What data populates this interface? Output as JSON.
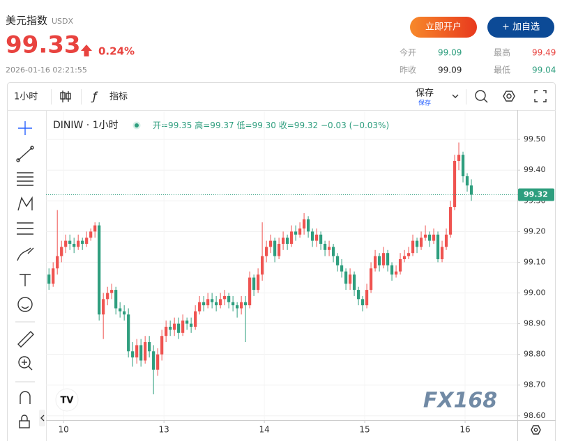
{
  "header": {
    "title": "美元指数",
    "code": "USDX",
    "price": "99.33",
    "change": "0.24%",
    "datetime": "2026-01-16 02:21:55",
    "buttons": [
      "立即开户",
      "+ 加自选"
    ],
    "stats": [
      {
        "label": "今开",
        "value": "99.09"
      },
      {
        "label": "最高",
        "value": "99.49"
      },
      {
        "label": "昨收",
        "value": "99.09"
      },
      {
        "label": "最低",
        "value": "99.04"
      }
    ]
  },
  "toolbar": {
    "interval": "1小时",
    "indicators": "指标",
    "save": "保存",
    "save_sub": "保存"
  },
  "chart_data": {
    "type": "candlestick",
    "symbol": "DINIW · 1小时",
    "legend_items": [
      "开=99.35",
      "高=99.37",
      "低=99.30",
      "收=99.32",
      "−0.03 (−0.03%)"
    ],
    "watermark": "FX168",
    "up_color": "#ef5350",
    "down_color": "#2e9e7e",
    "grid": true,
    "last_price": 99.32,
    "open": [
      99.06,
      99.03,
      99.08,
      99.12,
      99.15,
      99.17,
      99.16,
      99.15,
      99.17,
      99.16,
      99.18,
      99.2,
      99.22,
      98.93,
      98.98,
      99.0,
      99.01,
      98.95,
      98.94,
      98.93,
      98.81,
      98.79,
      98.83,
      98.78,
      98.84,
      98.81,
      98.75,
      98.8,
      98.86,
      98.89,
      98.88,
      98.9,
      98.87,
      98.91,
      98.9,
      98.89,
      98.94,
      98.97,
      98.96,
      98.98,
      98.97,
      98.96,
      98.98,
      98.99,
      98.97,
      98.96,
      98.95,
      98.97,
      98.96,
      99.05,
      99.01,
      99.06,
      99.12,
      99.15,
      99.17,
      99.12,
      99.16,
      99.18,
      99.16,
      99.2,
      99.19,
      99.21,
      99.24,
      99.2,
      99.17,
      99.19,
      99.16,
      99.14,
      99.15,
      99.12,
      99.09,
      99.07,
      99.03,
      99.06,
      99.01,
      98.98,
      98.96,
      99.01,
      99.08,
      99.12,
      99.09,
      99.13,
      99.09,
      99.06,
      99.07,
      99.11,
      99.12,
      99.13,
      99.17,
      99.15,
      99.18,
      99.19,
      99.17,
      99.19,
      99.11,
      99.15,
      99.19,
      99.28,
      99.43,
      99.45,
      99.38,
      99.35
    ],
    "high": [
      99.08,
      99.1,
      99.27,
      99.17,
      99.19,
      99.19,
      99.18,
      99.19,
      99.18,
      99.2,
      99.21,
      99.23,
      99.23,
      99.0,
      99.02,
      99.03,
      99.02,
      98.97,
      98.96,
      98.95,
      98.84,
      98.85,
      98.85,
      98.86,
      98.86,
      98.83,
      98.82,
      98.88,
      98.91,
      98.91,
      98.92,
      98.92,
      98.93,
      98.92,
      98.92,
      98.96,
      98.99,
      98.99,
      99.0,
      99.0,
      98.99,
      99.0,
      99.01,
      99.0,
      98.99,
      98.97,
      98.99,
      98.99,
      99.07,
      99.06,
      99.08,
      99.23,
      99.17,
      99.19,
      99.18,
      99.18,
      99.2,
      99.19,
      99.22,
      99.22,
      99.23,
      99.26,
      99.25,
      99.21,
      99.21,
      99.2,
      99.17,
      99.17,
      99.16,
      99.13,
      99.11,
      99.08,
      99.08,
      99.07,
      99.02,
      98.99,
      99.03,
      99.1,
      99.14,
      99.13,
      99.15,
      99.14,
      99.1,
      99.09,
      99.13,
      99.14,
      99.15,
      99.19,
      99.18,
      99.2,
      99.22,
      99.2,
      99.21,
      99.2,
      99.17,
      99.21,
      99.3,
      99.45,
      99.49,
      99.46,
      99.39,
      99.37
    ],
    "low": [
      99.01,
      99.02,
      99.06,
      99.1,
      99.13,
      99.14,
      99.13,
      99.14,
      99.14,
      99.15,
      99.17,
      99.18,
      98.91,
      98.85,
      98.96,
      98.98,
      98.93,
      98.92,
      98.91,
      98.79,
      98.76,
      98.77,
      98.76,
      98.77,
      98.79,
      98.67,
      98.73,
      98.78,
      98.84,
      98.86,
      98.86,
      98.85,
      98.86,
      98.88,
      98.87,
      98.88,
      98.93,
      98.94,
      98.95,
      98.95,
      98.94,
      98.95,
      98.96,
      98.95,
      98.94,
      98.92,
      98.93,
      98.84,
      98.95,
      98.99,
      99.0,
      99.04,
      99.1,
      99.13,
      99.1,
      99.11,
      99.14,
      99.14,
      99.15,
      99.17,
      99.18,
      99.19,
      99.18,
      99.15,
      99.15,
      99.14,
      99.12,
      99.12,
      99.1,
      99.07,
      99.05,
      99.01,
      99.01,
      98.99,
      98.96,
      98.94,
      98.95,
      99.0,
      99.07,
      99.07,
      99.08,
      99.07,
      99.04,
      99.05,
      99.06,
      99.1,
      99.11,
      99.12,
      99.13,
      99.14,
      99.17,
      99.15,
      99.16,
      99.1,
      99.1,
      99.14,
      99.18,
      99.27,
      99.4,
      99.36,
      99.33,
      99.3
    ],
    "close": [
      99.03,
      99.08,
      99.12,
      99.15,
      99.17,
      99.16,
      99.15,
      99.17,
      99.16,
      99.18,
      99.2,
      99.22,
      98.93,
      98.98,
      99.0,
      99.01,
      98.95,
      98.94,
      98.93,
      98.81,
      98.79,
      98.83,
      98.78,
      98.84,
      98.81,
      98.75,
      98.8,
      98.86,
      98.89,
      98.88,
      98.9,
      98.87,
      98.91,
      98.9,
      98.89,
      98.94,
      98.97,
      98.96,
      98.98,
      98.97,
      98.96,
      98.98,
      98.99,
      98.97,
      98.96,
      98.95,
      98.97,
      98.96,
      99.05,
      99.01,
      99.06,
      99.12,
      99.15,
      99.17,
      99.12,
      99.16,
      99.18,
      99.16,
      99.2,
      99.19,
      99.21,
      99.24,
      99.2,
      99.17,
      99.19,
      99.16,
      99.14,
      99.15,
      99.12,
      99.09,
      99.07,
      99.03,
      99.06,
      99.01,
      98.98,
      98.96,
      99.01,
      99.08,
      99.12,
      99.09,
      99.13,
      99.09,
      99.06,
      99.07,
      99.11,
      99.12,
      99.13,
      99.17,
      99.15,
      99.18,
      99.19,
      99.17,
      99.19,
      99.11,
      99.15,
      99.19,
      99.28,
      99.43,
      99.45,
      99.38,
      99.35,
      99.32
    ],
    "xlim": [
      -0.7,
      112
    ],
    "xticks": [
      {
        "value": 3.5,
        "label": "10"
      },
      {
        "value": 27.5,
        "label": "13"
      },
      {
        "value": 51.5,
        "label": "14"
      },
      {
        "value": 75.5,
        "label": "15"
      },
      {
        "value": 99.5,
        "label": "16"
      }
    ],
    "ylim": [
      98.586,
      99.591
    ],
    "yticks": [
      {
        "value": 99.5,
        "label": "99.50"
      },
      {
        "value": 99.4,
        "label": "99.40"
      },
      {
        "value": 99.3,
        "label": "99.30"
      },
      {
        "value": 99.2,
        "label": "99.20"
      },
      {
        "value": 99.1,
        "label": "99.10"
      },
      {
        "value": 99.0,
        "label": "99.00"
      },
      {
        "value": 98.9,
        "label": "98.90"
      },
      {
        "value": 98.8,
        "label": "98.80"
      },
      {
        "value": 98.7,
        "label": "98.70"
      },
      {
        "value": 98.6,
        "label": "98.60"
      }
    ]
  }
}
